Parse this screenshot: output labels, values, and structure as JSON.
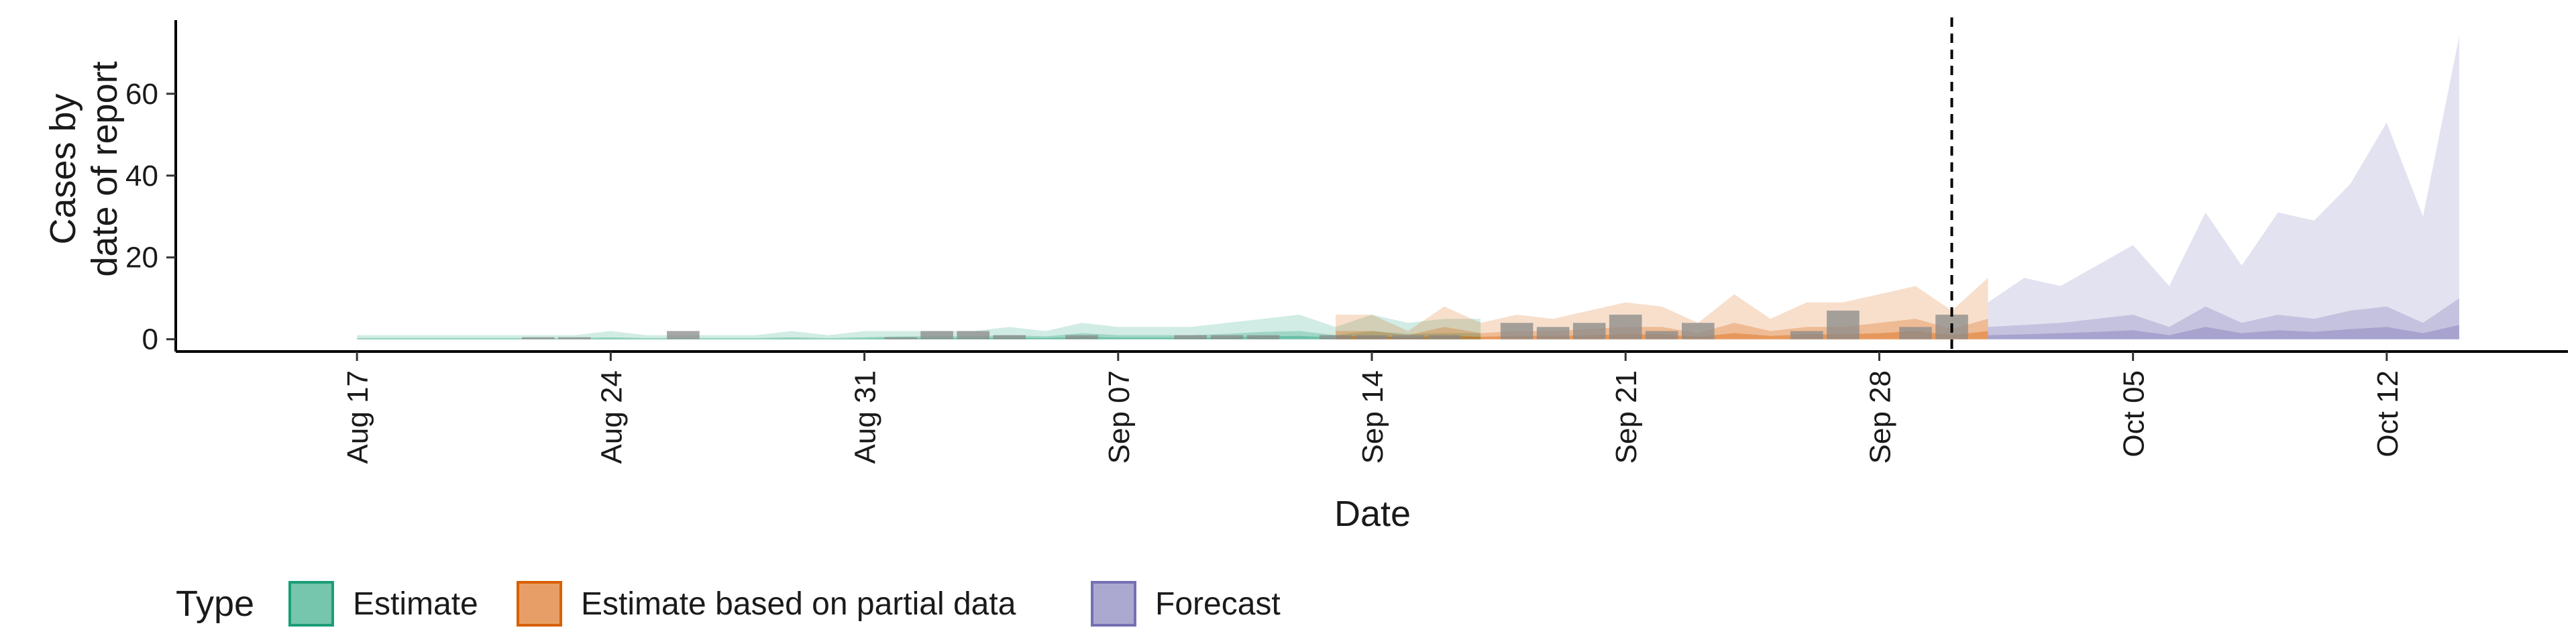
{
  "chart_data": {
    "type": "area",
    "title": "",
    "xlabel": "Date",
    "ylabel_lines": [
      "Cases by",
      "date of report"
    ],
    "x_range": [
      "2020-08-12",
      "2020-10-17"
    ],
    "ylim": [
      -3,
      78
    ],
    "y_ticks": [
      0,
      20,
      40,
      60
    ],
    "x_ticks": [
      {
        "date": "2020-08-17",
        "label": "Aug 17"
      },
      {
        "date": "2020-08-24",
        "label": "Aug 24"
      },
      {
        "date": "2020-08-31",
        "label": "Aug 31"
      },
      {
        "date": "2020-09-07",
        "label": "Sep 07"
      },
      {
        "date": "2020-09-14",
        "label": "Sep 14"
      },
      {
        "date": "2020-09-21",
        "label": "Sep 21"
      },
      {
        "date": "2020-09-28",
        "label": "Sep 28"
      },
      {
        "date": "2020-10-05",
        "label": "Oct 05"
      },
      {
        "date": "2020-10-12",
        "label": "Oct 12"
      }
    ],
    "vline_date": "2020-09-30",
    "grid": false,
    "legend_position": "bottom",
    "legend_title": "Type",
    "series": [
      {
        "name": "Estimate",
        "color": "#1b9e77",
        "start_date": "2020-08-17",
        "upper90": [
          1,
          1,
          1,
          1,
          1,
          1,
          1,
          2,
          1,
          1,
          1,
          1,
          2,
          1,
          2,
          2,
          2,
          2,
          3,
          2,
          4,
          3,
          3,
          3,
          4,
          5,
          6,
          3,
          6,
          4,
          5,
          5
        ],
        "upper50": [
          0.3,
          0.3,
          0.3,
          0.3,
          0.3,
          0.3,
          0.3,
          0.5,
          0.3,
          0.3,
          0.3,
          0.3,
          0.5,
          0.3,
          0.5,
          0.7,
          0.7,
          0.7,
          1,
          0.7,
          1.5,
          1,
          1,
          1,
          1.3,
          1.8,
          2,
          1,
          2,
          1.3,
          1.5,
          1.5
        ],
        "upper20": [
          0.1,
          0.1,
          0.1,
          0.1,
          0.1,
          0.1,
          0.1,
          0.2,
          0.1,
          0.1,
          0.1,
          0.1,
          0.2,
          0.1,
          0.2,
          0.3,
          0.3,
          0.3,
          0.4,
          0.3,
          0.6,
          0.4,
          0.4,
          0.4,
          0.5,
          0.7,
          0.8,
          0.4,
          0.8,
          0.5,
          0.6,
          0.6
        ]
      },
      {
        "name": "Estimate based on partial data",
        "color": "#d95f02",
        "start_date": "2020-09-13",
        "upper90": [
          6,
          6,
          2,
          8,
          4,
          6,
          5,
          7,
          9,
          8,
          4,
          11,
          5,
          9,
          9,
          11,
          13,
          7,
          15
        ],
        "upper50": [
          2,
          2,
          1,
          3,
          1.5,
          2,
          2,
          2.5,
          3,
          3,
          1.5,
          4,
          2,
          3,
          3,
          4,
          5,
          2.5,
          5
        ],
        "upper20": [
          0.8,
          0.8,
          0.4,
          1,
          0.6,
          0.8,
          0.8,
          1,
          1.2,
          1.2,
          0.6,
          1.5,
          0.8,
          1.2,
          1.2,
          1.5,
          2,
          1,
          2
        ]
      },
      {
        "name": "Forecast",
        "color": "#7570b3",
        "start_date": "2020-10-01",
        "upper90": [
          9,
          15,
          13,
          18,
          23,
          13,
          31,
          18,
          31,
          29,
          38,
          53,
          30,
          74
        ],
        "upper50": [
          3,
          3.5,
          4,
          5,
          6,
          3,
          8,
          4,
          6,
          5,
          7,
          8,
          4,
          10
        ],
        "upper20": [
          1,
          1.2,
          1.5,
          1.8,
          2.2,
          1,
          3,
          1.5,
          2.2,
          1.8,
          2.5,
          3,
          1.5,
          3.5
        ]
      }
    ],
    "reported_cases": [
      {
        "date": "2020-08-22",
        "value": 0.5
      },
      {
        "date": "2020-08-23",
        "value": 0.5
      },
      {
        "date": "2020-08-26",
        "value": 2
      },
      {
        "date": "2020-09-01",
        "value": 0.5
      },
      {
        "date": "2020-09-02",
        "value": 2
      },
      {
        "date": "2020-09-03",
        "value": 2
      },
      {
        "date": "2020-09-04",
        "value": 1
      },
      {
        "date": "2020-09-06",
        "value": 1
      },
      {
        "date": "2020-09-09",
        "value": 1
      },
      {
        "date": "2020-09-10",
        "value": 1
      },
      {
        "date": "2020-09-11",
        "value": 1
      },
      {
        "date": "2020-09-13",
        "value": 1
      },
      {
        "date": "2020-09-14",
        "value": 1
      },
      {
        "date": "2020-09-15",
        "value": 1
      },
      {
        "date": "2020-09-16",
        "value": 1
      },
      {
        "date": "2020-09-18",
        "value": 4
      },
      {
        "date": "2020-09-19",
        "value": 3
      },
      {
        "date": "2020-09-20",
        "value": 4
      },
      {
        "date": "2020-09-21",
        "value": 6
      },
      {
        "date": "2020-09-22",
        "value": 2
      },
      {
        "date": "2020-09-23",
        "value": 4
      },
      {
        "date": "2020-09-26",
        "value": 2
      },
      {
        "date": "2020-09-27",
        "value": 7
      },
      {
        "date": "2020-09-29",
        "value": 3
      },
      {
        "date": "2020-09-30",
        "value": 6
      }
    ],
    "reported_color": "#8a8a8a"
  }
}
